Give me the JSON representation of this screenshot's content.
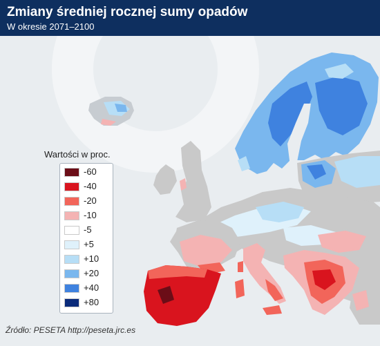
{
  "header": {
    "title": "Zmiany średniej rocznej sumy opadów",
    "subtitle": "W okresie 2071–2100"
  },
  "legend": {
    "title": "Wartości w proc.",
    "items": [
      {
        "label": "-60",
        "color": "#6b0d17"
      },
      {
        "label": "-40",
        "color": "#d9141e"
      },
      {
        "label": "-20",
        "color": "#f2655a"
      },
      {
        "label": "-10",
        "color": "#f4b3b3"
      },
      {
        "label": "-5",
        "color": "#ffffff"
      },
      {
        "label": "+5",
        "color": "#dff1fb"
      },
      {
        "label": "+10",
        "color": "#b7def6"
      },
      {
        "label": "+20",
        "color": "#7ab7ee"
      },
      {
        "label": "+40",
        "color": "#3f82df"
      },
      {
        "label": "+80",
        "color": "#0a2a7a"
      }
    ]
  },
  "source": "Źródło: PESETA http://peseta.jrc.es",
  "colors": {
    "header_bg": "#0e2f5f",
    "sea": "#e9edf0",
    "land_no_data": "#c9c9c9"
  }
}
